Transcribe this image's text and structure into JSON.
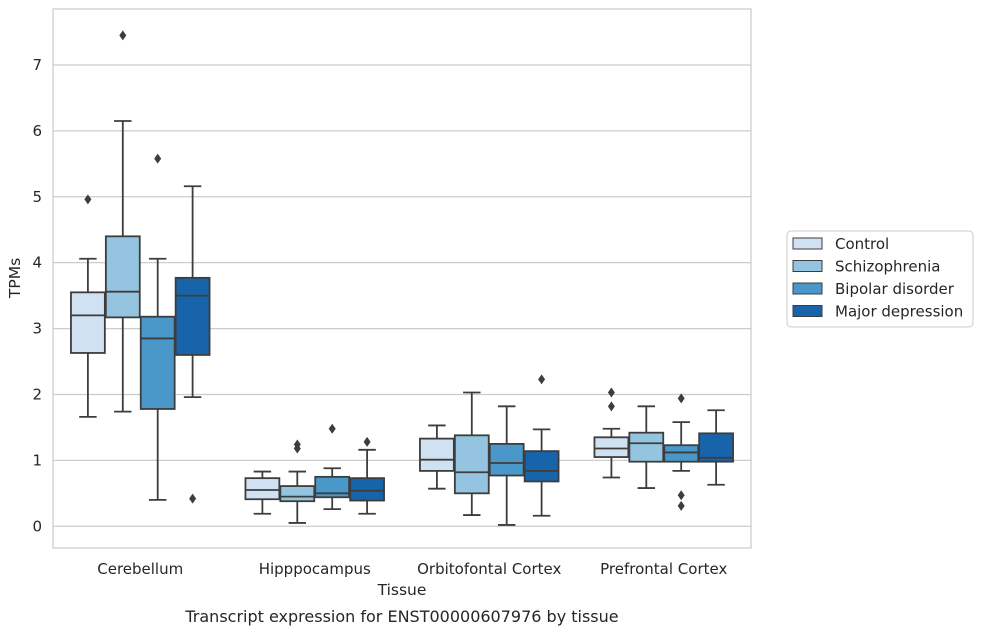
{
  "chart_data": {
    "type": "box",
    "title": "",
    "xlabel": "Tissue",
    "ylabel": "TPMs",
    "caption": "Transcript expression for ENST00000607976 by tissue",
    "ylim": [
      -0.33,
      7.85
    ],
    "yticks": [
      0,
      1,
      2,
      3,
      4,
      5,
      6,
      7
    ],
    "grid": "horizontal",
    "legend_position": "right",
    "categories": [
      "Cerebellum",
      "Hipppocampus",
      "Orbitofontal Cortex",
      "Prefrontal Cortex"
    ],
    "series": [
      {
        "name": "Control",
        "color": "#d0e1f2",
        "boxes": [
          {
            "whislo": 1.66,
            "q1": 2.63,
            "med": 3.2,
            "q3": 3.55,
            "whishi": 4.06,
            "fliers": [
              4.96
            ]
          },
          {
            "whislo": 0.19,
            "q1": 0.41,
            "med": 0.55,
            "q3": 0.73,
            "whishi": 0.83,
            "fliers": []
          },
          {
            "whislo": 0.57,
            "q1": 0.84,
            "med": 1.01,
            "q3": 1.33,
            "whishi": 1.53,
            "fliers": []
          },
          {
            "whislo": 0.74,
            "q1": 1.05,
            "med": 1.18,
            "q3": 1.35,
            "whishi": 1.48,
            "fliers": [
              1.82,
              2.03
            ]
          }
        ]
      },
      {
        "name": "Schizophrenia",
        "color": "#94c4df",
        "boxes": [
          {
            "whislo": 1.74,
            "q1": 3.17,
            "med": 3.56,
            "q3": 4.4,
            "whishi": 6.15,
            "fliers": [
              7.45
            ]
          },
          {
            "whislo": 0.05,
            "q1": 0.38,
            "med": 0.45,
            "q3": 0.61,
            "whishi": 0.83,
            "fliers": [
              1.18,
              1.24
            ]
          },
          {
            "whislo": 0.17,
            "q1": 0.5,
            "med": 0.82,
            "q3": 1.38,
            "whishi": 2.03,
            "fliers": []
          },
          {
            "whislo": 0.58,
            "q1": 0.98,
            "med": 1.26,
            "q3": 1.42,
            "whishi": 1.82,
            "fliers": []
          }
        ]
      },
      {
        "name": "Bipolar disorder",
        "color": "#4a98c9",
        "boxes": [
          {
            "whislo": 0.4,
            "q1": 1.78,
            "med": 2.85,
            "q3": 3.18,
            "whishi": 4.06,
            "fliers": [
              5.58
            ]
          },
          {
            "whislo": 0.26,
            "q1": 0.44,
            "med": 0.5,
            "q3": 0.75,
            "whishi": 0.88,
            "fliers": [
              1.48
            ]
          },
          {
            "whislo": 0.02,
            "q1": 0.77,
            "med": 0.96,
            "q3": 1.25,
            "whishi": 1.82,
            "fliers": []
          },
          {
            "whislo": 0.84,
            "q1": 0.98,
            "med": 1.12,
            "q3": 1.23,
            "whishi": 1.58,
            "fliers": [
              0.31,
              0.47,
              1.94
            ]
          }
        ]
      },
      {
        "name": "Major depression",
        "color": "#1764ab",
        "boxes": [
          {
            "whislo": 1.96,
            "q1": 2.6,
            "med": 3.5,
            "q3": 3.77,
            "whishi": 5.16,
            "fliers": [
              0.42
            ]
          },
          {
            "whislo": 0.19,
            "q1": 0.39,
            "med": 0.54,
            "q3": 0.73,
            "whishi": 1.16,
            "fliers": [
              1.28
            ]
          },
          {
            "whislo": 0.16,
            "q1": 0.68,
            "med": 0.84,
            "q3": 1.14,
            "whishi": 1.47,
            "fliers": [
              2.23
            ]
          },
          {
            "whislo": 0.63,
            "q1": 0.98,
            "med": 1.04,
            "q3": 1.41,
            "whishi": 1.76,
            "fliers": []
          }
        ]
      }
    ]
  }
}
